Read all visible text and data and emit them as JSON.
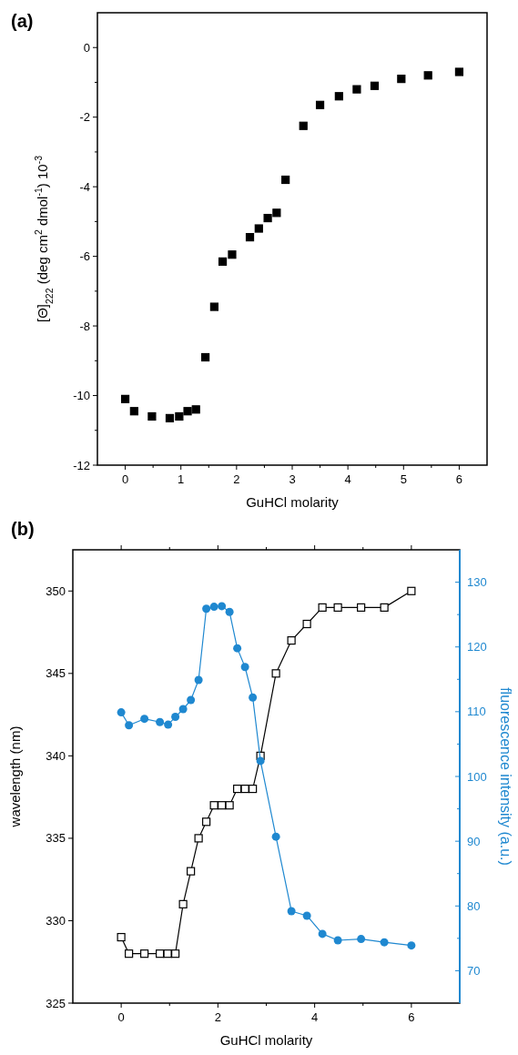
{
  "chart_data": [
    {
      "type": "scatter",
      "title": "(a)",
      "xlabel": "GuHCl molarity",
      "ylabel": "[Θ]$_{222}$ (deg cm$^{2}$ dmol$^{-1}$) 10$^{-3}$",
      "marker": "square",
      "xlim": [
        -0.5,
        6.5
      ],
      "xticks": [
        0,
        {
          "value": 0.5,
          "label": null
        },
        1,
        {
          "value": 1.5,
          "label": null
        },
        2,
        {
          "value": 2.5,
          "label": null
        },
        3,
        {
          "value": 3.5,
          "label": null
        },
        4,
        {
          "value": 4.5,
          "label": null
        },
        5,
        {
          "value": 5.5,
          "label": null
        },
        6
      ],
      "ylim": [
        -12,
        1
      ],
      "yticks": [
        -12,
        {
          "value": -11,
          "label": null
        },
        -10,
        {
          "value": -9,
          "label": null
        },
        -8,
        {
          "value": -7,
          "label": null
        },
        -6,
        {
          "value": -5,
          "label": null
        },
        -4,
        {
          "value": -3,
          "label": null
        },
        -2,
        {
          "value": -1,
          "label": null
        },
        0
      ],
      "series": [
        {
          "color": "#000000",
          "x": [
            0,
            0.16,
            0.48,
            0.8,
            0.97,
            1.12,
            1.27,
            1.44,
            1.6,
            1.75,
            1.92,
            2.24,
            2.4,
            2.56,
            2.72,
            2.88,
            3.2,
            3.5,
            3.84,
            4.16,
            4.48,
            4.96,
            5.44,
            6
          ],
          "values": [
            -10.1,
            -10.45,
            -10.6,
            -10.65,
            -10.6,
            -10.45,
            -10.4,
            -8.9,
            -7.45,
            -6.15,
            -5.95,
            -5.45,
            -5.2,
            -4.9,
            -4.75,
            -3.8,
            -2.25,
            -1.65,
            -1.4,
            -1.2,
            -1.1,
            -0.9,
            -0.8,
            -0.7
          ]
        }
      ]
    },
    {
      "type": "line",
      "title": "(b)",
      "xlabel": "GuHCl molarity",
      "ylabel": "wavelength (nm)",
      "y2label": "fluorescence intensity (a.u.)",
      "xlim": [
        -1,
        7
      ],
      "xticks": [
        0,
        {
          "value": 1,
          "label": null
        },
        2,
        {
          "value": 3,
          "label": null
        },
        4,
        {
          "value": 5,
          "label": null
        },
        6
      ],
      "ylim": [
        325,
        352.5
      ],
      "yticks": [
        325,
        330,
        335,
        340,
        345,
        350
      ],
      "y2lim": [
        65,
        135
      ],
      "y2ticks": [
        70,
        {
          "value": 75,
          "label": null
        },
        80,
        {
          "value": 85,
          "label": null
        },
        90,
        {
          "value": 95,
          "label": null
        },
        100,
        {
          "value": 105,
          "label": null
        },
        110,
        {
          "value": 115,
          "label": null
        },
        120,
        {
          "value": 125,
          "label": null
        },
        130
      ],
      "series": [
        {
          "color": "#000000",
          "marker": "square",
          "x": [
            0,
            0.16,
            0.48,
            0.8,
            0.96,
            1.12,
            1.28,
            1.44,
            1.6,
            1.76,
            1.92,
            2.08,
            2.24,
            2.4,
            2.56,
            2.72,
            2.88,
            3.2,
            3.52,
            3.84,
            4.16,
            4.48,
            4.96,
            5.44,
            6
          ],
          "values": [
            329,
            328,
            328,
            328,
            328,
            328,
            331,
            333,
            335,
            336,
            337,
            337,
            337,
            338,
            338,
            338,
            340,
            345,
            347,
            348,
            349,
            349,
            349,
            349,
            350
          ]
        },
        {
          "color": "#1f88d0",
          "marker": "circle",
          "axis": "y2",
          "x": [
            0,
            0.16,
            0.48,
            0.8,
            0.97,
            1.12,
            1.28,
            1.44,
            1.6,
            1.76,
            1.92,
            2.08,
            2.24,
            2.4,
            2.56,
            2.72,
            2.88,
            3.2,
            3.52,
            3.84,
            4.16,
            4.48,
            4.96,
            5.44,
            6
          ],
          "values": [
            109.9,
            107.9,
            108.9,
            108.4,
            108,
            109.2,
            110.4,
            111.8,
            114.9,
            125.9,
            126.2,
            126.3,
            125.4,
            119.8,
            116.9,
            112.2,
            102.4,
            90.7,
            79.2,
            78.5,
            75.7,
            74.7,
            74.9,
            74.4,
            73.9
          ]
        }
      ]
    }
  ]
}
